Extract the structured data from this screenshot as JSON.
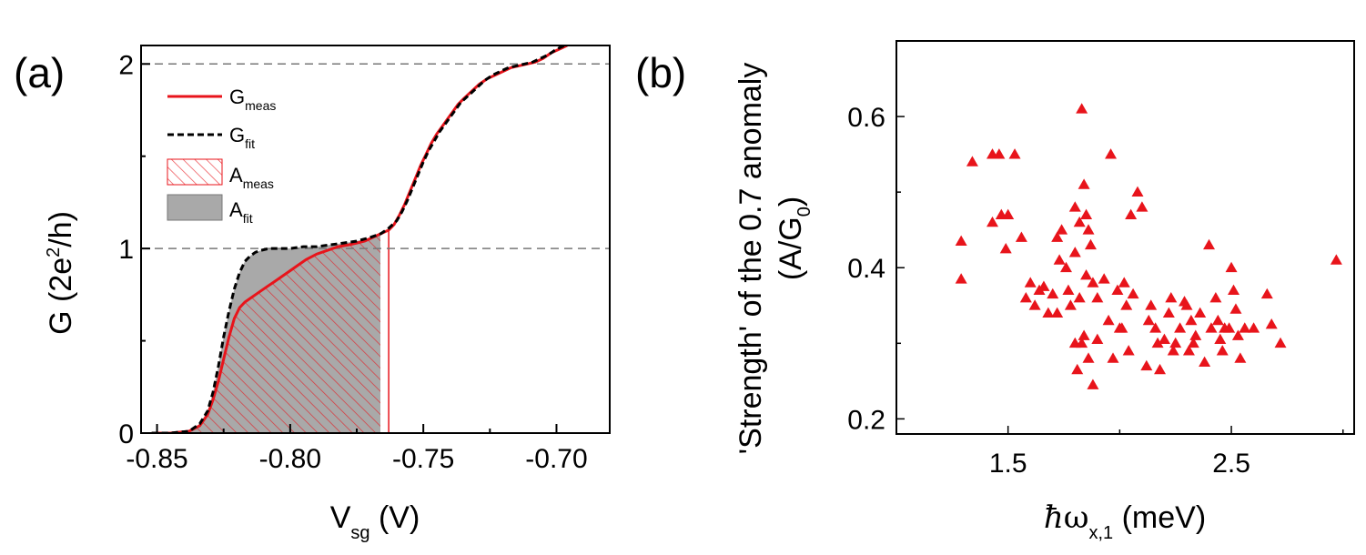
{
  "chart_data": [
    {
      "panel": "(a)",
      "type": "line",
      "xlabel_main": "V",
      "xlabel_sub": "sg",
      "xlabel_unit": " (V)",
      "ylabel_pre": "G (2e",
      "ylabel_sup": "2",
      "ylabel_post": "/h)",
      "xlim": [
        -0.856,
        -0.68
      ],
      "ylim": [
        0,
        2.1
      ],
      "xticks": [
        -0.85,
        -0.8,
        -0.75,
        -0.7
      ],
      "xtick_labels": [
        "-0.85",
        "-0.80",
        "-0.75",
        "-0.70"
      ],
      "yticks": [
        0,
        1,
        2
      ],
      "ytick_labels": [
        "0",
        "1",
        "2"
      ],
      "reference_lines_y": [
        1,
        2
      ],
      "area_upper_x": -0.763,
      "series": [
        {
          "name": "G_meas",
          "label_main": "G",
          "label_sub": "meas",
          "color": "#e8141b",
          "x": [
            -0.852,
            -0.845,
            -0.838,
            -0.834,
            -0.831,
            -0.829,
            -0.827,
            -0.825,
            -0.823,
            -0.821,
            -0.819,
            -0.817,
            -0.815,
            -0.812,
            -0.809,
            -0.806,
            -0.803,
            -0.8,
            -0.797,
            -0.794,
            -0.79,
            -0.786,
            -0.782,
            -0.778,
            -0.775,
            -0.772,
            -0.769,
            -0.766,
            -0.763,
            -0.761,
            -0.759,
            -0.757,
            -0.755,
            -0.753,
            -0.751,
            -0.749,
            -0.747,
            -0.745,
            -0.743,
            -0.741,
            -0.739,
            -0.737,
            -0.735,
            -0.732,
            -0.729,
            -0.726,
            -0.723,
            -0.72,
            -0.717,
            -0.714,
            -0.711,
            -0.708,
            -0.705,
            -0.702,
            -0.699,
            -0.696
          ],
          "y": [
            0.0,
            0.0,
            0.01,
            0.04,
            0.1,
            0.18,
            0.28,
            0.4,
            0.52,
            0.62,
            0.68,
            0.71,
            0.73,
            0.76,
            0.79,
            0.82,
            0.85,
            0.88,
            0.91,
            0.94,
            0.97,
            0.99,
            1.01,
            1.02,
            1.03,
            1.04,
            1.06,
            1.08,
            1.1,
            1.13,
            1.18,
            1.24,
            1.31,
            1.38,
            1.45,
            1.51,
            1.57,
            1.62,
            1.66,
            1.7,
            1.74,
            1.78,
            1.81,
            1.85,
            1.89,
            1.92,
            1.94,
            1.96,
            1.98,
            1.99,
            2.0,
            2.01,
            2.03,
            2.06,
            2.08,
            2.1
          ]
        },
        {
          "name": "G_fit",
          "label_main": "G",
          "label_sub": "fit",
          "color": "#000000",
          "x": [
            -0.852,
            -0.845,
            -0.838,
            -0.834,
            -0.831,
            -0.829,
            -0.827,
            -0.825,
            -0.823,
            -0.821,
            -0.819,
            -0.817,
            -0.815,
            -0.813,
            -0.811,
            -0.808,
            -0.805,
            -0.8,
            -0.795,
            -0.79,
            -0.785,
            -0.78,
            -0.775,
            -0.77,
            -0.766,
            -0.763,
            -0.76,
            -0.758,
            -0.756,
            -0.754,
            -0.752,
            -0.75,
            -0.748,
            -0.746,
            -0.744,
            -0.742,
            -0.74,
            -0.738,
            -0.736,
            -0.733,
            -0.73,
            -0.727,
            -0.724,
            -0.721,
            -0.718,
            -0.715,
            -0.712,
            -0.709,
            -0.706,
            -0.703,
            -0.7,
            -0.697
          ],
          "y": [
            0.0,
            0.0,
            0.01,
            0.05,
            0.12,
            0.22,
            0.36,
            0.52,
            0.66,
            0.78,
            0.87,
            0.93,
            0.96,
            0.98,
            0.99,
            1.0,
            1.0,
            1.0,
            1.01,
            1.01,
            1.02,
            1.03,
            1.04,
            1.06,
            1.08,
            1.11,
            1.15,
            1.2,
            1.26,
            1.33,
            1.4,
            1.47,
            1.53,
            1.58,
            1.63,
            1.67,
            1.71,
            1.75,
            1.79,
            1.83,
            1.87,
            1.91,
            1.94,
            1.96,
            1.98,
            1.99,
            2.0,
            2.01,
            2.03,
            2.05,
            2.08,
            2.1
          ]
        }
      ],
      "areas": [
        {
          "name": "A_meas",
          "label_main": "A",
          "label_sub": "meas",
          "style": "hatched",
          "color": "#e8141b"
        },
        {
          "name": "A_fit",
          "label_main": "A",
          "label_sub": "fit",
          "style": "filled",
          "color": "#a9a9a9"
        }
      ]
    },
    {
      "panel": "(b)",
      "type": "scatter",
      "marker": "triangle",
      "color": "#e8141b",
      "xlabel_hbar": "ħ",
      "xlabel_omega": "ω",
      "xlabel_sub": "x,1",
      "xlabel_unit": " (meV)",
      "ylabel_line1": "'Strength' of the 0.7 anomaly",
      "ylabel_line2_pre": "(A/G",
      "ylabel_line2_sub": "0",
      "ylabel_line2_post": ")",
      "xlim": [
        1.0,
        3.05
      ],
      "ylim": [
        0.18,
        0.7
      ],
      "xticks": [
        1.5,
        2.5
      ],
      "xtick_labels": [
        "1.5",
        "2.5"
      ],
      "yticks": [
        0.2,
        0.4,
        0.6
      ],
      "ytick_labels": [
        "0.2",
        "0.4",
        "0.6"
      ],
      "points": [
        [
          1.29,
          0.435
        ],
        [
          1.29,
          0.385
        ],
        [
          1.34,
          0.54
        ],
        [
          1.43,
          0.55
        ],
        [
          1.46,
          0.55
        ],
        [
          1.53,
          0.55
        ],
        [
          1.43,
          0.46
        ],
        [
          1.47,
          0.47
        ],
        [
          1.5,
          0.47
        ],
        [
          1.49,
          0.425
        ],
        [
          1.56,
          0.44
        ],
        [
          1.58,
          0.36
        ],
        [
          1.6,
          0.38
        ],
        [
          1.62,
          0.35
        ],
        [
          1.64,
          0.37
        ],
        [
          1.66,
          0.375
        ],
        [
          1.68,
          0.34
        ],
        [
          1.7,
          0.365
        ],
        [
          1.72,
          0.44
        ],
        [
          1.72,
          0.34
        ],
        [
          1.73,
          0.41
        ],
        [
          1.74,
          0.45
        ],
        [
          1.76,
          0.4
        ],
        [
          1.77,
          0.37
        ],
        [
          1.78,
          0.35
        ],
        [
          1.8,
          0.48
        ],
        [
          1.8,
          0.42
        ],
        [
          1.82,
          0.46
        ],
        [
          1.82,
          0.36
        ],
        [
          1.83,
          0.61
        ],
        [
          1.84,
          0.51
        ],
        [
          1.85,
          0.47
        ],
        [
          1.86,
          0.45
        ],
        [
          1.87,
          0.43
        ],
        [
          1.88,
          0.38
        ],
        [
          1.8,
          0.3
        ],
        [
          1.81,
          0.265
        ],
        [
          1.83,
          0.3
        ],
        [
          1.84,
          0.31
        ],
        [
          1.86,
          0.28
        ],
        [
          1.88,
          0.245
        ],
        [
          1.9,
          0.305
        ],
        [
          1.85,
          0.39
        ],
        [
          1.9,
          0.36
        ],
        [
          1.93,
          0.385
        ],
        [
          1.95,
          0.33
        ],
        [
          1.96,
          0.55
        ],
        [
          1.97,
          0.28
        ],
        [
          1.99,
          0.37
        ],
        [
          2.01,
          0.32
        ],
        [
          2.03,
          0.35
        ],
        [
          2.04,
          0.29
        ],
        [
          2.05,
          0.47
        ],
        [
          2.06,
          0.365
        ],
        [
          2.08,
          0.5
        ],
        [
          2.1,
          0.48
        ],
        [
          2.12,
          0.27
        ],
        [
          2.14,
          0.35
        ],
        [
          2.16,
          0.32
        ],
        [
          2.18,
          0.265
        ],
        [
          2.2,
          0.305
        ],
        [
          2.22,
          0.34
        ],
        [
          2.24,
          0.29
        ],
        [
          2.25,
          0.3
        ],
        [
          2.27,
          0.32
        ],
        [
          2.29,
          0.355
        ],
        [
          2.3,
          0.35
        ],
        [
          2.31,
          0.29
        ],
        [
          2.32,
          0.33
        ],
        [
          2.34,
          0.31
        ],
        [
          2.36,
          0.34
        ],
        [
          2.38,
          0.275
        ],
        [
          2.4,
          0.43
        ],
        [
          2.41,
          0.32
        ],
        [
          2.43,
          0.36
        ],
        [
          2.45,
          0.305
        ],
        [
          2.46,
          0.29
        ],
        [
          2.47,
          0.32
        ],
        [
          2.49,
          0.32
        ],
        [
          2.5,
          0.4
        ],
        [
          2.51,
          0.37
        ],
        [
          2.52,
          0.345
        ],
        [
          2.53,
          0.31
        ],
        [
          2.54,
          0.28
        ],
        [
          2.56,
          0.32
        ],
        [
          2.6,
          0.32
        ],
        [
          2.66,
          0.365
        ],
        [
          2.68,
          0.325
        ],
        [
          2.72,
          0.3
        ],
        [
          2.97,
          0.41
        ],
        [
          2.0,
          0.32
        ],
        [
          2.02,
          0.38
        ],
        [
          2.13,
          0.33
        ],
        [
          2.17,
          0.3
        ],
        [
          2.23,
          0.36
        ],
        [
          2.33,
          0.3
        ],
        [
          2.44,
          0.33
        ]
      ]
    }
  ]
}
